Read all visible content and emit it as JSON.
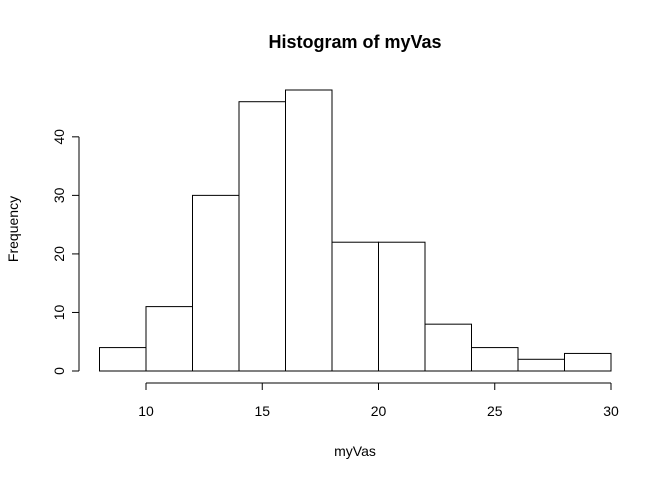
{
  "chart_data": {
    "type": "bar",
    "title": "Histogram of myVas",
    "xlabel": "myVas",
    "ylabel": "Frequency",
    "bins": [
      {
        "x0": 8,
        "x1": 10,
        "count": 4
      },
      {
        "x0": 10,
        "x1": 12,
        "count": 11
      },
      {
        "x0": 12,
        "x1": 14,
        "count": 30
      },
      {
        "x0": 14,
        "x1": 16,
        "count": 46
      },
      {
        "x0": 16,
        "x1": 18,
        "count": 48
      },
      {
        "x0": 18,
        "x1": 20,
        "count": 22
      },
      {
        "x0": 20,
        "x1": 22,
        "count": 22
      },
      {
        "x0": 22,
        "x1": 24,
        "count": 8
      },
      {
        "x0": 24,
        "x1": 26,
        "count": 4
      },
      {
        "x0": 26,
        "x1": 28,
        "count": 2
      },
      {
        "x0": 28,
        "x1": 30,
        "count": 3
      }
    ],
    "xlim": [
      8,
      30
    ],
    "ylim": [
      0,
      48
    ],
    "x_ticks": [
      10,
      15,
      20,
      25,
      30
    ],
    "y_ticks": [
      0,
      10,
      20,
      30,
      40
    ],
    "grid": false,
    "bar_fill": "#ffffff",
    "bar_stroke": "#000000"
  }
}
